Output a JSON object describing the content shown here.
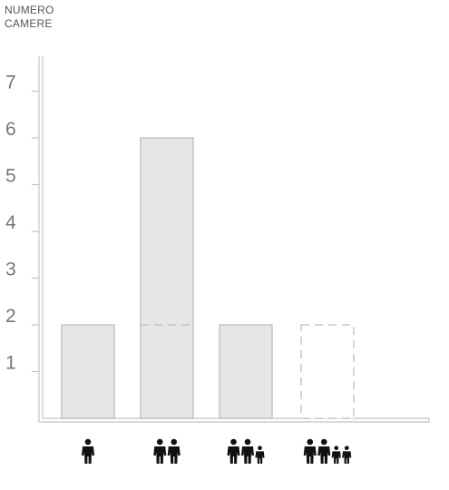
{
  "chart_data": {
    "type": "bar",
    "ylabel_lines": [
      "NUMERO",
      "CAMERE"
    ],
    "xlabel": "",
    "categories": [
      "1 persona",
      "2 persone",
      "3 persone",
      "4 persone"
    ],
    "category_icons": [
      [
        "adult-icon"
      ],
      [
        "adult-icon",
        "adult-icon"
      ],
      [
        "adult-icon",
        "adult-icon",
        "child-icon"
      ],
      [
        "adult-icon",
        "adult-icon",
        "child-icon",
        "child-icon"
      ]
    ],
    "values": [
      2,
      6,
      2,
      2
    ],
    "bar_style": [
      "solid",
      "solid",
      "solid",
      "dashed"
    ],
    "inner_dash_at": [
      null,
      2,
      null,
      null
    ],
    "yticks": [
      1,
      2,
      3,
      4,
      5,
      6,
      7
    ],
    "ylim": [
      0,
      7.5
    ],
    "grid": false,
    "colors": {
      "bar_fill": "#e6e6e6",
      "bar_stroke": "#bdbdbd",
      "axis": "#c4c4c4",
      "tick": "#777777",
      "icon": "#111111"
    }
  }
}
